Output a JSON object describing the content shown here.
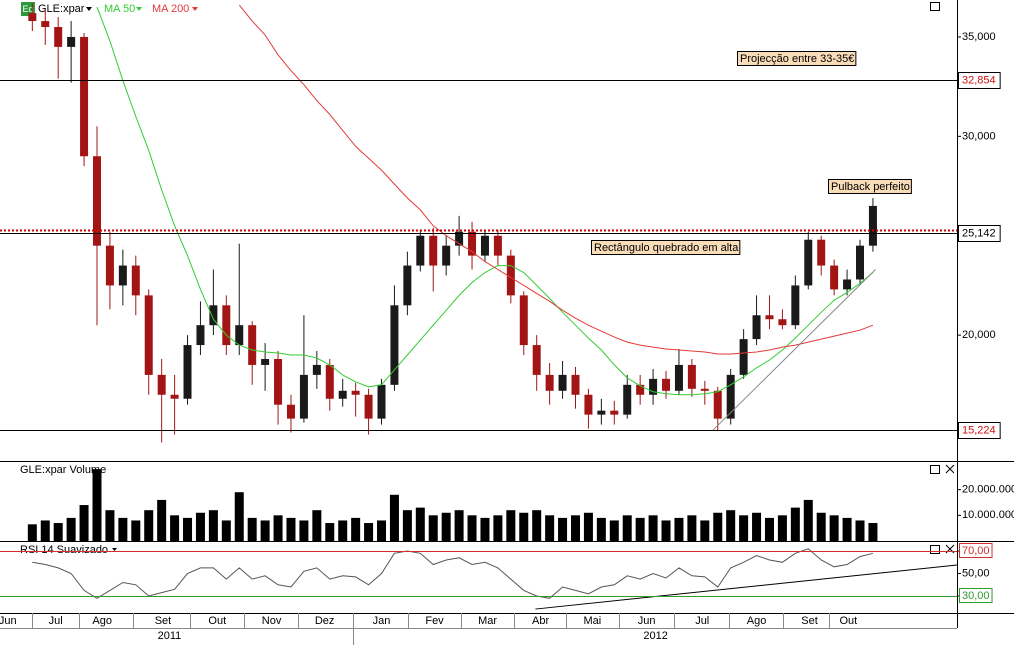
{
  "chart_data": [
    {
      "type": "candlestick",
      "title": "GLE:xpar",
      "symbol_icon": "Eq",
      "xlim": [
        0,
        74
      ],
      "x": [
        2.5,
        3.5,
        4.5,
        5.5,
        6.5,
        7.5,
        8.5,
        9.5,
        10.5,
        11.5,
        12.5,
        13.5,
        14.5,
        15.5,
        16.5,
        17.5,
        18.5,
        19.5,
        20.5,
        21.5,
        22.5,
        23.5,
        24.5,
        25.5,
        26.5,
        27.5,
        28.5,
        29.5,
        30.5,
        31.5,
        32.5,
        33.5,
        34.5,
        35.5,
        36.5,
        37.5,
        38.5,
        39.5,
        40.5,
        41.5,
        42.5,
        43.5,
        44.5,
        45.5,
        46.5,
        47.5,
        48.5,
        49.5,
        50.5,
        51.5,
        52.5,
        53.5,
        54.5,
        55.5,
        56.5,
        57.5,
        58.5,
        59.5,
        60.5,
        61.5,
        62.5,
        63.5,
        64.5,
        65.5,
        66.5,
        67.5
      ],
      "open": [
        36200,
        35800,
        35500,
        34500,
        35000,
        29000,
        24500,
        22500,
        23500,
        22000,
        18000,
        17000,
        16800,
        19500,
        20500,
        21500,
        19500,
        20500,
        18500,
        18800,
        16500,
        15800,
        18000,
        18500,
        16800,
        17200,
        17000,
        15800,
        17500,
        21500,
        23500,
        25000,
        23500,
        24500,
        25200,
        24000,
        25000,
        24000,
        22000,
        19500,
        18000,
        17200,
        18000,
        17000,
        16000,
        16200,
        16000,
        17500,
        17000,
        17800,
        17200,
        18500,
        17300,
        17200,
        15800,
        18000,
        19800,
        21000,
        20800,
        20500,
        22500,
        24800,
        23500,
        22300,
        22800,
        24500
      ],
      "high": [
        36700,
        36400,
        36000,
        35800,
        35200,
        30500,
        25200,
        24300,
        24000,
        22300,
        18800,
        18000,
        20000,
        21700,
        23300,
        22000,
        24600,
        20700,
        19600,
        19200,
        17000,
        21000,
        19200,
        18800,
        17800,
        17600,
        17300,
        17800,
        22500,
        24200,
        25300,
        25400,
        25000,
        26000,
        25700,
        25300,
        25300,
        24300,
        22200,
        20000,
        18600,
        18700,
        18400,
        17300,
        16800,
        16700,
        18000,
        18000,
        18300,
        18200,
        19300,
        18800,
        17700,
        17400,
        18300,
        20300,
        22000,
        22000,
        21300,
        23000,
        25200,
        25000,
        23800,
        23300,
        24800,
        26900
      ],
      "low": [
        35300,
        34600,
        32900,
        32700,
        28500,
        20500,
        21300,
        21500,
        21000,
        17000,
        14600,
        15000,
        16500,
        19000,
        20000,
        19000,
        19000,
        17500,
        17200,
        15500,
        15100,
        15600,
        17300,
        16200,
        16400,
        15900,
        15000,
        15500,
        17200,
        21000,
        23200,
        22200,
        23000,
        24000,
        23300,
        23700,
        23500,
        21600,
        19000,
        17200,
        16500,
        16800,
        16300,
        15300,
        15500,
        15500,
        15800,
        16500,
        16500,
        16800,
        17000,
        16900,
        16500,
        15200,
        15500,
        17800,
        19500,
        20300,
        20300,
        20300,
        22300,
        23000,
        22000,
        22000,
        22500,
        24200
      ],
      "close": [
        35800,
        35500,
        34500,
        35000,
        29000,
        24500,
        22500,
        23500,
        22000,
        18000,
        17000,
        16800,
        19500,
        20500,
        21500,
        19500,
        20500,
        18500,
        18800,
        16500,
        15800,
        18000,
        18500,
        16800,
        17200,
        17000,
        15800,
        17500,
        21500,
        23500,
        25000,
        23500,
        24500,
        25200,
        24000,
        25000,
        24000,
        22000,
        19500,
        18000,
        17200,
        18000,
        17000,
        16000,
        16200,
        16000,
        17500,
        17000,
        17800,
        17200,
        18500,
        17300,
        17200,
        15800,
        18000,
        19800,
        21000,
        20800,
        20500,
        22500,
        24800,
        23500,
        22300,
        22800,
        24500,
        26500
      ],
      "up_color": "#1a1a1a",
      "down_color": "#a31515",
      "series": [
        {
          "name": "MA 50",
          "color": "#33cc33",
          "values": [
            null,
            null,
            null,
            null,
            null,
            36500,
            34800,
            32800,
            31000,
            29300,
            27300,
            25500,
            24000,
            22300,
            20800,
            20000,
            19500,
            19250,
            19150,
            19100,
            19000,
            19000,
            18850,
            18500,
            18000,
            17650,
            17400,
            17500,
            18250,
            19000,
            19750,
            20500,
            21250,
            22000,
            22650,
            23150,
            23500,
            23500,
            23150,
            22500,
            21850,
            21150,
            20500,
            19850,
            19250,
            18500,
            17850,
            17450,
            17150,
            17050,
            17000,
            17000,
            17050,
            17150,
            17500,
            17900,
            18350,
            18750,
            19250,
            19850,
            20500,
            21150,
            21750,
            22150,
            22600,
            23150
          ]
        },
        {
          "name": "MA 200",
          "color": "#e23a3a",
          "values": [
            null,
            null,
            null,
            null,
            null,
            null,
            null,
            null,
            null,
            null,
            null,
            null,
            null,
            null,
            null,
            null,
            36600,
            35800,
            35100,
            34100,
            33300,
            32600,
            31800,
            31100,
            30300,
            29500,
            28900,
            28300,
            27600,
            26900,
            26300,
            25500,
            25000,
            24600,
            24200,
            23700,
            23300,
            22900,
            22500,
            22100,
            21700,
            21250,
            20850,
            20500,
            20200,
            19900,
            19650,
            19500,
            19400,
            19300,
            19250,
            19200,
            19150,
            19050,
            19050,
            19100,
            19150,
            19250,
            19400,
            19500,
            19650,
            19800,
            19950,
            20100,
            20250,
            20500
          ]
        }
      ],
      "ylim": [
        13668,
        36859
      ],
      "yticks": [
        {
          "value": 20000,
          "label": "20,000"
        },
        {
          "value": 30000,
          "label": "30,000"
        },
        {
          "value": 35000,
          "label": "35,000"
        }
      ],
      "levels": [
        {
          "value": 32854,
          "label": "32,854",
          "color": "#000000",
          "label_color": "#d01010",
          "style": "solid"
        },
        {
          "value": 25142,
          "label": "25,142",
          "color": "#000000",
          "label_color": "#000000",
          "style": "solid"
        },
        {
          "value": 15224,
          "label": "15,224",
          "color": "#000000",
          "label_color": "#d01010",
          "style": "solid"
        },
        {
          "value": 25300,
          "color": "#cc0000",
          "style": "dotted"
        }
      ],
      "trendlines": [
        {
          "x": [
            55.1,
            67.7
          ],
          "y": [
            15200,
            23300
          ],
          "color": "#888888"
        }
      ],
      "annotations": [
        "Projecção entre 33-35€",
        "Pulback perfeito",
        "Rectângulo quebrado em alta"
      ]
    },
    {
      "type": "bar",
      "title": "GLE:xpar Volume",
      "color": "#000000",
      "values": [
        6500000,
        8000000,
        7000000,
        9000000,
        14000000,
        28000000,
        12000000,
        9000000,
        8000000,
        12000000,
        16000000,
        10000000,
        9000000,
        11000000,
        12000000,
        8000000,
        19000000,
        9000000,
        8000000,
        10000000,
        9000000,
        8000000,
        12000000,
        7000000,
        8000000,
        9000000,
        7000000,
        8000000,
        18000000,
        12000000,
        13000000,
        10000000,
        11000000,
        12000000,
        10000000,
        9000000,
        10000000,
        12000000,
        11000000,
        12000000,
        10000000,
        9000000,
        10000000,
        11000000,
        9000000,
        8000000,
        10000000,
        9000000,
        10000000,
        8000000,
        9000000,
        10000000,
        8000000,
        11000000,
        12000000,
        10000000,
        11000000,
        9000000,
        10000000,
        13000000,
        16000000,
        11000000,
        10000000,
        9000000,
        8000000,
        7000000
      ],
      "ylim": [
        0,
        30770000
      ],
      "yticks": [
        {
          "value": 10000000,
          "label": "10.000.000"
        },
        {
          "value": 20000000,
          "label": "20.000.000"
        }
      ]
    },
    {
      "type": "line",
      "title": "RSI 14 Suavizado",
      "color": "#555555",
      "values": [
        60,
        58,
        55,
        50,
        35,
        28,
        35,
        42,
        40,
        30,
        33,
        36,
        50,
        55,
        55,
        45,
        55,
        45,
        48,
        40,
        38,
        52,
        55,
        45,
        48,
        47,
        40,
        50,
        68,
        70,
        68,
        58,
        62,
        64,
        58,
        60,
        55,
        45,
        35,
        30,
        28,
        38,
        35,
        32,
        38,
        40,
        48,
        45,
        50,
        46,
        55,
        48,
        47,
        38,
        55,
        60,
        66,
        62,
        60,
        68,
        72,
        62,
        56,
        58,
        65,
        68
      ],
      "ylim": [
        14.9,
        78
      ],
      "yticks": [
        {
          "value": 30,
          "label": "30,00"
        },
        {
          "value": 50,
          "label": "50,00"
        },
        {
          "value": 70,
          "label": "70,00"
        }
      ],
      "levels": [
        {
          "value": 70,
          "color": "#d03030"
        },
        {
          "value": 30,
          "color": "#339933"
        }
      ],
      "trendlines": [
        {
          "x": [
            41.4,
            74
          ],
          "y": [
            18.4,
            57.6
          ],
          "color": "#000000"
        }
      ],
      "xticks": [
        {
          "value": 0.6,
          "label": "Jun"
        },
        {
          "value": 4.3,
          "label": "Jul"
        },
        {
          "value": 7.9,
          "label": "Ago"
        },
        {
          "value": 12.6,
          "label": "Set"
        },
        {
          "value": 16.8,
          "label": "Out"
        },
        {
          "value": 21.0,
          "label": "Nov"
        },
        {
          "value": 25.1,
          "label": "Dez"
        },
        {
          "value": 29.5,
          "label": "Jan"
        },
        {
          "value": 33.6,
          "label": "Fev"
        },
        {
          "value": 37.7,
          "label": "Mar"
        },
        {
          "value": 41.8,
          "label": "Abr"
        },
        {
          "value": 45.8,
          "label": "Mai"
        },
        {
          "value": 50.0,
          "label": "Jun"
        },
        {
          "value": 54.3,
          "label": "Jul"
        },
        {
          "value": 58.5,
          "label": "Ago"
        },
        {
          "value": 62.6,
          "label": "Set"
        },
        {
          "value": 65.6,
          "label": "Out"
        }
      ],
      "year_ticks": [
        {
          "value": 13.1,
          "label": "2011"
        },
        {
          "value": 50.7,
          "label": "2012"
        }
      ]
    }
  ]
}
